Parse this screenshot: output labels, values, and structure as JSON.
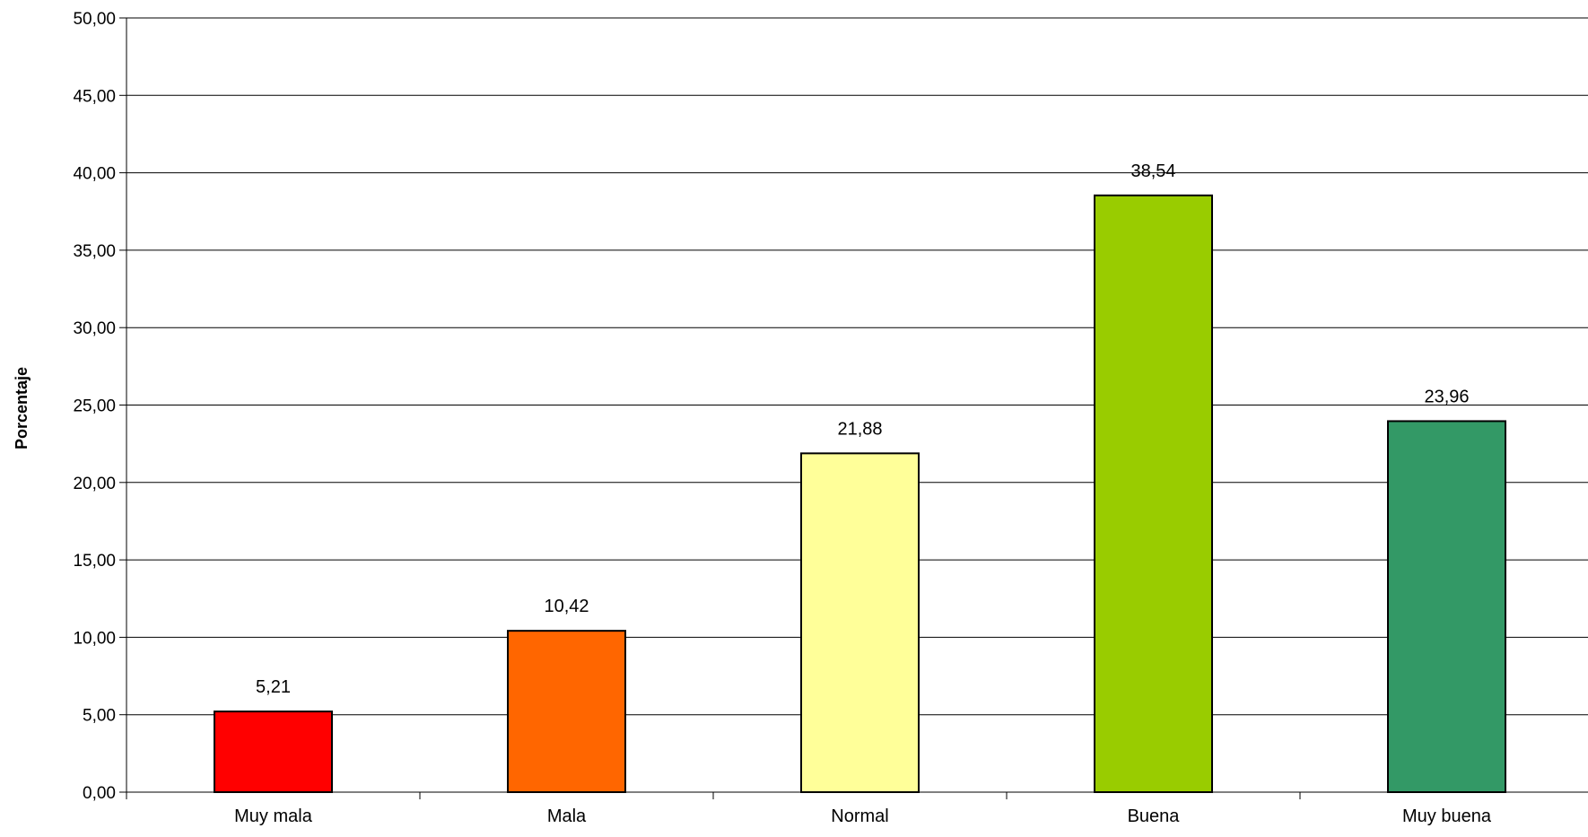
{
  "chart_data": {
    "type": "bar",
    "title": "",
    "xlabel": "",
    "ylabel": "Porcentaje",
    "ylim": [
      0,
      50
    ],
    "y_step": 5,
    "grid": true,
    "categories": [
      "Muy mala",
      "Mala",
      "Normal",
      "Buena",
      "Muy buena"
    ],
    "values": [
      5.21,
      10.42,
      21.88,
      38.54,
      23.96
    ],
    "value_labels": [
      "5,21",
      "10,42",
      "21,88",
      "38,54",
      "23,96"
    ],
    "y_tick_labels": [
      "0,00",
      "5,00",
      "10,00",
      "15,00",
      "20,00",
      "25,00",
      "30,00",
      "35,00",
      "40,00",
      "45,00",
      "50,00"
    ],
    "colors": [
      "#ff0000",
      "#ff6600",
      "#ffff99",
      "#99cc00",
      "#339966"
    ]
  }
}
